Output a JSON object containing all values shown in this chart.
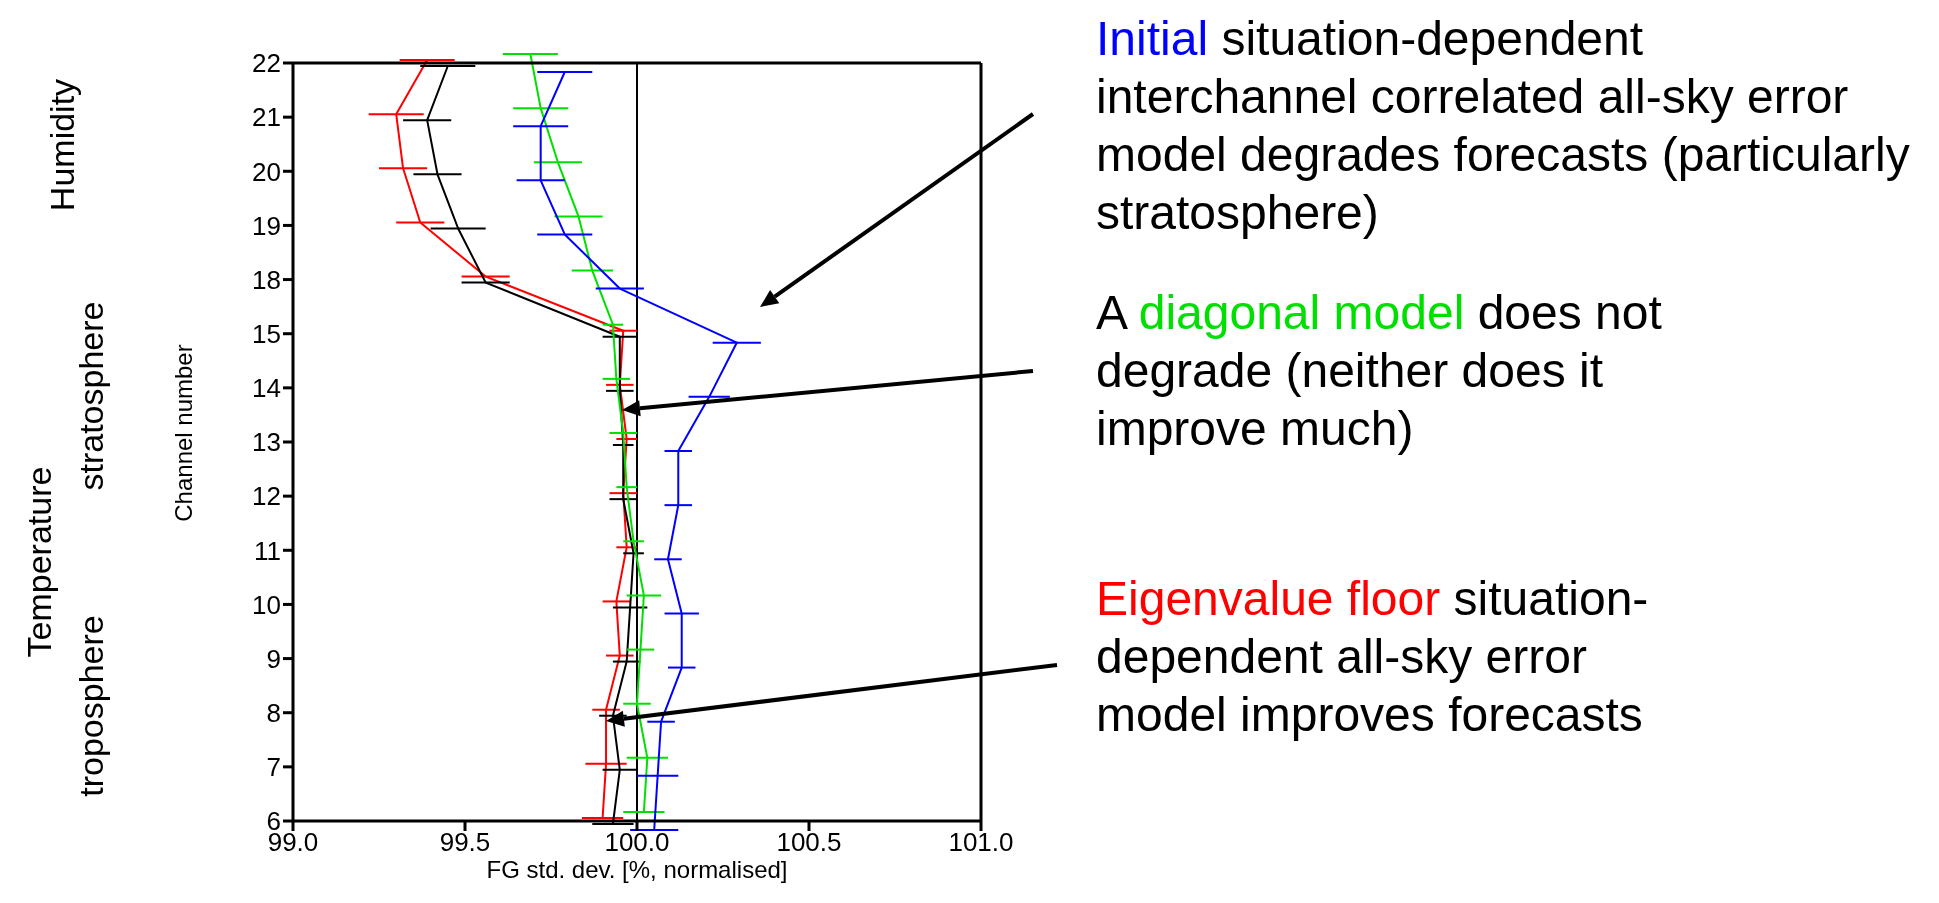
{
  "chart_data": {
    "type": "line",
    "orientation": "horizontal",
    "categories": [
      "22",
      "21",
      "20",
      "19",
      "18",
      "15",
      "14",
      "13",
      "12",
      "11",
      "10",
      "9",
      "8",
      "7",
      "6"
    ],
    "xlabel": "FG std. dev. [%, normalised]",
    "ylabel": "Channel number",
    "xlim": [
      99.0,
      101.0
    ],
    "xticks": [
      {
        "value": 99.0,
        "label": "99.0"
      },
      {
        "value": 99.5,
        "label": "99.5"
      },
      {
        "value": 100.0,
        "label": "100.0"
      },
      {
        "value": 100.5,
        "label": "100.5"
      },
      {
        "value": 101.0,
        "label": "101.0"
      }
    ],
    "series": [
      {
        "name": "Eigenvalue floor",
        "color": "#ff0000",
        "values": [
          99.39,
          99.3,
          99.32,
          99.37,
          99.56,
          99.96,
          99.95,
          99.97,
          99.96,
          99.97,
          99.94,
          99.95,
          99.91,
          99.91,
          99.9
        ],
        "errors": [
          0.08,
          0.08,
          0.07,
          0.07,
          0.07,
          0.04,
          0.04,
          0.03,
          0.04,
          0.03,
          0.04,
          0.04,
          0.04,
          0.06,
          0.06
        ]
      },
      {
        "color": "#000000",
        "values": [
          99.45,
          99.39,
          99.42,
          99.48,
          99.56,
          99.95,
          99.95,
          99.96,
          99.96,
          99.99,
          99.98,
          99.97,
          99.93,
          99.95,
          99.93
        ],
        "errors": [
          0.08,
          0.07,
          0.07,
          0.08,
          0.07,
          0.05,
          0.04,
          0.03,
          0.04,
          0.03,
          0.05,
          0.04,
          0.04,
          0.05,
          0.06
        ]
      },
      {
        "name": "diagonal model",
        "color": "#00e000",
        "values": [
          99.69,
          99.72,
          99.77,
          99.83,
          99.87,
          99.93,
          99.94,
          99.96,
          99.97,
          99.99,
          100.02,
          100.01,
          100.0,
          100.03,
          100.02
        ],
        "errors": [
          0.08,
          0.08,
          0.07,
          0.07,
          0.06,
          0.03,
          0.04,
          0.04,
          0.03,
          0.03,
          0.05,
          0.04,
          0.04,
          0.06,
          0.06
        ]
      },
      {
        "name": "Initial",
        "color": "#0000ff",
        "values": [
          99.79,
          99.72,
          99.72,
          99.79,
          99.95,
          100.29,
          100.21,
          100.12,
          100.12,
          100.09,
          100.13,
          100.13,
          100.07,
          100.06,
          100.05
        ],
        "errors": [
          0.08,
          0.08,
          0.07,
          0.08,
          0.07,
          0.07,
          0.06,
          0.04,
          0.04,
          0.04,
          0.05,
          0.04,
          0.04,
          0.06,
          0.07
        ]
      }
    ],
    "ref_lines": [
      {
        "axis": "x",
        "value": 100.0,
        "color": "#000000"
      }
    ],
    "grid": false,
    "legend": false,
    "marker": "none",
    "line_style": "solid",
    "annotations": [
      "Humidity",
      "Temperature",
      "stratosphere",
      "troposphere",
      "situation-dependent interchannel correlated all-sky error model degrades forecasts (particularly stratosphere)",
      "A",
      "does not degrade (neither does it improve much)",
      "situation-dependent all-sky error model improves forecasts"
    ]
  }
}
